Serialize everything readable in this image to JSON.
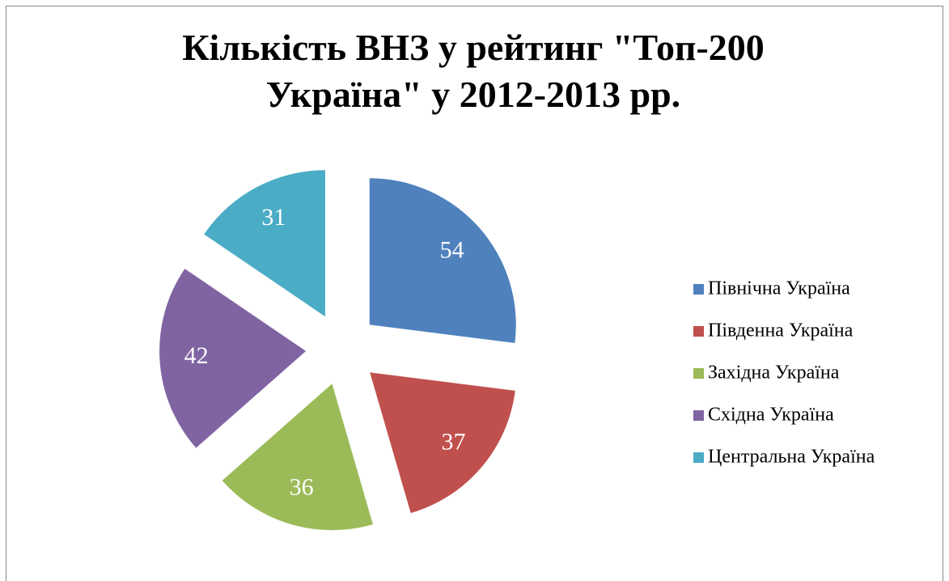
{
  "chart_data": {
    "type": "pie",
    "title": "Кількість ВНЗ у рейтинг \"Топ-200 Україна\" у 2012-2013 рр.",
    "categories": [
      "Північна Україна",
      "Південна Україна",
      "Західна Україна",
      "Східна Україна",
      "Центральна Україна"
    ],
    "values": [
      54,
      37,
      36,
      42,
      31
    ],
    "colors": [
      "#4f81bd",
      "#c0504d",
      "#9bbb59",
      "#8064a2",
      "#4bacc6"
    ],
    "legend": "right"
  }
}
